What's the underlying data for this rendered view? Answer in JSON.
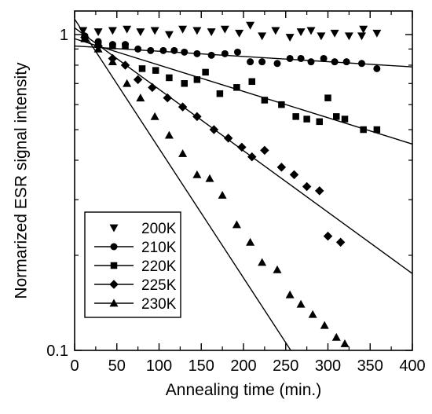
{
  "chart_data": {
    "type": "scatter",
    "title": "",
    "xlabel": "Annealing time (min.)",
    "ylabel": "Normarized ESR signal intensity",
    "xlim": [
      0,
      400
    ],
    "ylim": [
      0.1,
      1.2
    ],
    "yscale": "log",
    "x_ticks": [
      0,
      50,
      100,
      150,
      200,
      250,
      300,
      350,
      400
    ],
    "y_ticks": [
      {
        "value": 0.1,
        "label": "0.1"
      },
      {
        "value": 1,
        "label": "1"
      }
    ],
    "legend_position": "bottom-left",
    "series": [
      {
        "name": "200K",
        "marker": "triangle-down",
        "points": [
          [
            10,
            1.03
          ],
          [
            28,
            1.02
          ],
          [
            45,
            1.03
          ],
          [
            62,
            1.04
          ],
          [
            78,
            1.02
          ],
          [
            95,
            1.03
          ],
          [
            112,
            1.0
          ],
          [
            128,
            1.04
          ],
          [
            145,
            1.03
          ],
          [
            162,
            1.02
          ],
          [
            178,
            1.04
          ],
          [
            195,
            1.01
          ],
          [
            208,
            1.07
          ],
          [
            222,
            0.99
          ],
          [
            238,
            1.03
          ],
          [
            255,
            0.98
          ],
          [
            268,
            1.02
          ],
          [
            280,
            1.03
          ],
          [
            292,
            0.99
          ],
          [
            308,
            1.01
          ],
          [
            325,
            0.99
          ],
          [
            340,
            0.99
          ],
          [
            342,
            1.04
          ],
          [
            358,
            1.01
          ]
        ]
      },
      {
        "name": "210K",
        "marker": "circle",
        "points": [
          [
            12,
            0.99
          ],
          [
            28,
            0.95
          ],
          [
            45,
            0.93
          ],
          [
            60,
            0.93
          ],
          [
            75,
            0.9
          ],
          [
            90,
            0.89
          ],
          [
            105,
            0.89
          ],
          [
            118,
            0.89
          ],
          [
            130,
            0.88
          ],
          [
            145,
            0.87
          ],
          [
            162,
            0.86
          ],
          [
            178,
            0.87
          ],
          [
            193,
            0.88
          ],
          [
            208,
            0.82
          ],
          [
            222,
            0.82
          ],
          [
            240,
            0.81
          ],
          [
            255,
            0.84
          ],
          [
            268,
            0.84
          ],
          [
            280,
            0.82
          ],
          [
            295,
            0.84
          ],
          [
            308,
            0.82
          ],
          [
            322,
            0.82
          ],
          [
            340,
            0.81
          ],
          [
            358,
            0.78
          ]
        ],
        "fit": [
          [
            0,
            0.92
          ],
          [
            400,
            0.79
          ]
        ]
      },
      {
        "name": "220K",
        "marker": "square",
        "points": [
          [
            12,
            0.98
          ],
          [
            28,
            0.93
          ],
          [
            45,
            0.92
          ],
          [
            60,
            0.92
          ],
          [
            80,
            0.78
          ],
          [
            96,
            0.77
          ],
          [
            112,
            0.73
          ],
          [
            130,
            0.7
          ],
          [
            145,
            0.72
          ],
          [
            155,
            0.76
          ],
          [
            172,
            0.65
          ],
          [
            192,
            0.68
          ],
          [
            210,
            0.71
          ],
          [
            225,
            0.62
          ],
          [
            245,
            0.6
          ],
          [
            262,
            0.55
          ],
          [
            275,
            0.54
          ],
          [
            290,
            0.53
          ],
          [
            300,
            0.63
          ],
          [
            310,
            0.55
          ],
          [
            320,
            0.54
          ],
          [
            342,
            0.5
          ],
          [
            358,
            0.5
          ]
        ],
        "fit": [
          [
            0,
            0.97
          ],
          [
            400,
            0.45
          ]
        ]
      },
      {
        "name": "225K",
        "marker": "diamond",
        "points": [
          [
            12,
            0.98
          ],
          [
            28,
            0.92
          ],
          [
            45,
            0.84
          ],
          [
            60,
            0.8
          ],
          [
            75,
            0.72
          ],
          [
            92,
            0.68
          ],
          [
            110,
            0.63
          ],
          [
            128,
            0.59
          ],
          [
            145,
            0.55
          ],
          [
            165,
            0.5
          ],
          [
            182,
            0.47
          ],
          [
            198,
            0.44
          ],
          [
            210,
            0.41
          ],
          [
            225,
            0.43
          ],
          [
            245,
            0.38
          ],
          [
            260,
            0.36
          ],
          [
            275,
            0.33
          ],
          [
            290,
            0.32
          ],
          [
            300,
            0.23
          ],
          [
            315,
            0.22
          ]
        ],
        "fit": [
          [
            0,
            1.05
          ],
          [
            400,
            0.175
          ]
        ]
      },
      {
        "name": "230K",
        "marker": "triangle-up",
        "points": [
          [
            12,
            0.97
          ],
          [
            28,
            0.9
          ],
          [
            45,
            0.82
          ],
          [
            62,
            0.7
          ],
          [
            78,
            0.63
          ],
          [
            95,
            0.55
          ],
          [
            112,
            0.48
          ],
          [
            128,
            0.42
          ],
          [
            145,
            0.36
          ],
          [
            160,
            0.35
          ],
          [
            175,
            0.31
          ],
          [
            192,
            0.25
          ],
          [
            208,
            0.22
          ],
          [
            222,
            0.19
          ],
          [
            240,
            0.18
          ],
          [
            255,
            0.15
          ],
          [
            268,
            0.14
          ],
          [
            282,
            0.13
          ],
          [
            296,
            0.12
          ],
          [
            310,
            0.11
          ],
          [
            320,
            0.105
          ]
        ],
        "fit": [
          [
            0,
            1.12
          ],
          [
            256,
            0.1
          ]
        ]
      }
    ]
  }
}
